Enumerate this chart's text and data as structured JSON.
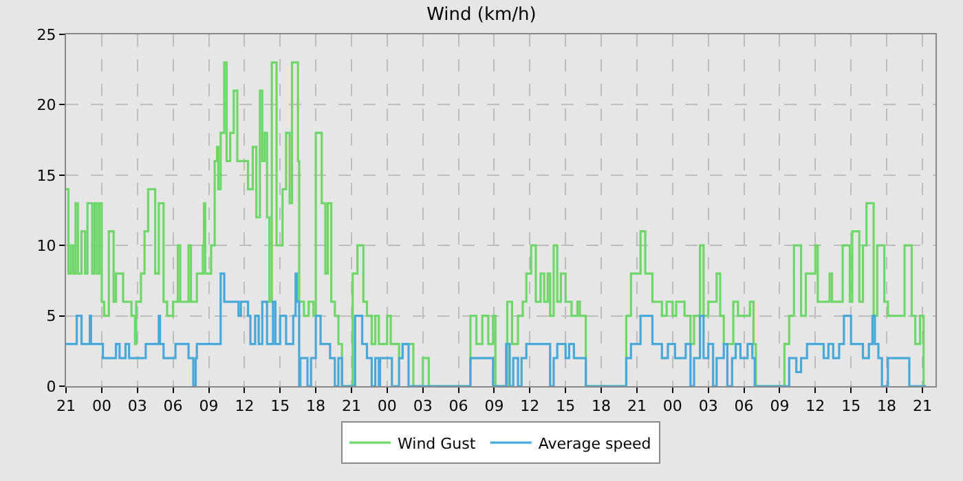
{
  "chart_data": {
    "type": "step",
    "title": "Wind (km/h)",
    "xlim": [
      "--01-01T21:00",
      "--01-04T22:06"
    ],
    "xticks": [
      {
        "value": "--01-01T21:00",
        "label": "21"
      },
      {
        "value": "--01-02T00:00",
        "label": "00"
      },
      {
        "value": "--01-02T03:00",
        "label": "03"
      },
      {
        "value": "--01-02T06:00",
        "label": "06"
      },
      {
        "value": "--01-02T09:00",
        "label": "09"
      },
      {
        "value": "--01-02T12:00",
        "label": "12"
      },
      {
        "value": "--01-02T15:00",
        "label": "15"
      },
      {
        "value": "--01-02T18:00",
        "label": "18"
      },
      {
        "value": "--01-02T21:00",
        "label": "21"
      },
      {
        "value": "--01-03T00:00",
        "label": "00"
      },
      {
        "value": "--01-03T03:00",
        "label": "03"
      },
      {
        "value": "--01-03T06:00",
        "label": "06"
      },
      {
        "value": "--01-03T09:00",
        "label": "09"
      },
      {
        "value": "--01-03T12:00",
        "label": "12"
      },
      {
        "value": "--01-03T15:00",
        "label": "15"
      },
      {
        "value": "--01-03T18:00",
        "label": "18"
      },
      {
        "value": "--01-03T21:00",
        "label": "21"
      },
      {
        "value": "--01-04T00:00",
        "label": "00"
      },
      {
        "value": "--01-04T03:00",
        "label": "03"
      },
      {
        "value": "--01-04T06:00",
        "label": "06"
      },
      {
        "value": "--01-04T09:00",
        "label": "09"
      },
      {
        "value": "--01-04T12:00",
        "label": "12"
      },
      {
        "value": "--01-04T15:00",
        "label": "15"
      },
      {
        "value": "--01-04T18:00",
        "label": "18"
      },
      {
        "value": "--01-04T21:00",
        "label": "21"
      }
    ],
    "ylim": [
      0,
      25
    ],
    "yticks": [
      0,
      5,
      10,
      15,
      20,
      25
    ],
    "grid": true,
    "legend": "bottom",
    "marker": "none",
    "line_style": "solid",
    "series": [
      {
        "name": "Wind Gust",
        "color": "#6fd76a",
        "x": [
          "--01-01T21:00",
          "--01-01T21:12",
          "--01-01T21:24",
          "--01-01T21:36",
          "--01-01T21:48",
          "--01-01T22:00",
          "--01-01T22:18",
          "--01-01T22:36",
          "--01-01T22:48",
          "--01-01T23:12",
          "--01-01T23:24",
          "--01-01T23:36",
          "--01-01T23:48",
          "--01-02T00:00",
          "--01-02T00:12",
          "--01-02T00:36",
          "--01-02T01:00",
          "--01-02T01:12",
          "--01-02T01:48",
          "--01-02T02:30",
          "--01-02T02:48",
          "--01-02T02:54",
          "--01-02T03:18",
          "--01-02T03:36",
          "--01-02T03:54",
          "--01-02T04:30",
          "--01-02T04:48",
          "--01-02T05:12",
          "--01-02T05:30",
          "--01-02T06:00",
          "--01-02T06:24",
          "--01-02T06:36",
          "--01-02T07:18",
          "--01-02T07:30",
          "--01-02T08:00",
          "--01-02T08:30",
          "--01-02T08:36",
          "--01-02T08:42",
          "--01-02T09:12",
          "--01-02T09:30",
          "--01-02T09:42",
          "--01-02T09:48",
          "--01-02T10:00",
          "--01-02T10:18",
          "--01-02T10:30",
          "--01-02T10:48",
          "--01-02T11:06",
          "--01-02T11:24",
          "--01-02T12:18",
          "--01-02T12:42",
          "--01-02T13:00",
          "--01-02T13:18",
          "--01-02T13:30",
          "--01-02T13:42",
          "--01-02T13:54",
          "--01-02T14:06",
          "--01-02T14:18",
          "--01-02T14:42",
          "--01-02T15:12",
          "--01-02T15:30",
          "--01-02T15:48",
          "--01-02T16:00",
          "--01-02T16:30",
          "--01-02T16:36",
          "--01-02T17:00",
          "--01-02T17:24",
          "--01-02T17:48",
          "--01-02T18:00",
          "--01-02T18:30",
          "--01-02T18:48",
          "--01-02T19:00",
          "--01-02T19:18",
          "--01-02T19:36",
          "--01-02T19:54",
          "--01-02T20:12",
          "--01-02T21:06",
          "--01-02T21:30",
          "--01-02T22:00",
          "--01-02T22:18",
          "--01-02T22:42",
          "--01-02T23:00",
          "--01-02T23:18",
          "--01-03T00:00",
          "--01-03T00:18",
          "--01-03T01:00",
          "--01-03T01:18",
          "--01-03T02:12",
          "--01-03T03:00",
          "--01-03T03:30",
          "--01-03T07:00",
          "--01-03T07:30",
          "--01-03T08:00",
          "--01-03T08:30",
          "--01-03T08:54",
          "--01-03T09:06",
          "--01-03T10:06",
          "--01-03T10:30",
          "--01-03T11:00",
          "--01-03T11:24",
          "--01-03T11:42",
          "--01-03T12:06",
          "--01-03T12:30",
          "--01-03T12:54",
          "--01-03T13:12",
          "--01-03T13:30",
          "--01-03T13:42",
          "--01-03T14:00",
          "--01-03T14:18",
          "--01-03T14:36",
          "--01-03T15:00",
          "--01-03T15:30",
          "--01-03T16:00",
          "--01-03T16:12",
          "--01-03T16:42",
          "--01-03T20:06",
          "--01-03T20:30",
          "--01-03T21:18",
          "--01-03T21:42",
          "--01-03T22:18",
          "--01-03T23:06",
          "--01-03T23:30",
          "--01-04T00:00",
          "--01-04T00:18",
          "--01-04T01:00",
          "--01-04T01:30",
          "--01-04T01:48",
          "--01-04T02:18",
          "--01-04T02:36",
          "--01-04T03:00",
          "--01-04T03:42",
          "--01-04T04:00",
          "--01-04T04:18",
          "--01-04T05:06",
          "--01-04T05:30",
          "--01-04T06:30",
          "--01-04T06:48",
          "--01-04T07:00",
          "--01-04T09:24",
          "--01-04T09:48",
          "--01-04T10:12",
          "--01-04T10:48",
          "--01-04T11:12",
          "--01-04T12:00",
          "--01-04T12:12",
          "--01-04T13:12",
          "--01-04T13:24",
          "--01-04T14:18",
          "--01-04T14:54",
          "--01-04T15:06",
          "--01-04T15:42",
          "--01-04T16:00",
          "--01-04T16:18",
          "--01-04T16:54",
          "--01-04T17:12",
          "--01-04T17:48",
          "--01-04T18:06",
          "--01-04T19:30",
          "--01-04T20:06",
          "--01-04T20:24",
          "--01-04T20:48",
          "--01-04T21:06",
          "--01-04T21:18"
        ],
        "values": [
          14,
          8,
          10,
          8,
          13,
          8,
          11,
          8,
          13,
          8,
          13,
          8,
          13,
          6,
          5,
          11,
          6,
          8,
          6,
          5,
          3,
          6,
          8,
          11,
          14,
          8,
          13,
          6,
          5,
          6,
          10,
          6,
          10,
          6,
          8,
          10,
          13,
          8,
          10,
          16,
          17,
          14,
          18,
          23,
          16,
          18,
          21,
          16,
          14,
          17,
          12,
          21,
          16,
          18,
          12,
          6,
          23,
          10,
          14,
          18,
          13,
          23,
          16,
          6,
          5,
          6,
          5,
          18,
          13,
          8,
          13,
          6,
          5,
          3,
          0,
          8,
          10,
          6,
          5,
          3,
          5,
          3,
          5,
          3,
          2,
          3,
          0,
          2,
          0,
          5,
          3,
          5,
          3,
          5,
          0,
          6,
          3,
          5,
          6,
          8,
          10,
          6,
          8,
          6,
          8,
          5,
          10,
          6,
          8,
          6,
          5,
          6,
          5,
          0,
          5,
          8,
          11,
          8,
          6,
          5,
          6,
          5,
          6,
          5,
          3,
          5,
          10,
          5,
          6,
          8,
          5,
          3,
          6,
          5,
          6,
          3,
          0,
          3,
          5,
          10,
          5,
          8,
          10,
          6,
          8,
          6,
          10,
          6,
          11,
          6,
          10,
          13,
          5,
          10,
          6,
          5,
          10,
          5,
          3,
          5,
          0,
          0
        ]
      },
      {
        "name": "Average speed",
        "color": "#4aa8d8",
        "x": [
          "--01-01T21:00",
          "--01-01T21:54",
          "--01-01T22:18",
          "--01-01T23:00",
          "--01-01T23:06",
          "--01-02T00:06",
          "--01-02T01:12",
          "--01-02T01:30",
          "--01-02T02:00",
          "--01-02T02:18",
          "--01-02T03:42",
          "--01-02T04:48",
          "--01-02T04:54",
          "--01-02T05:12",
          "--01-02T06:12",
          "--01-02T07:18",
          "--01-02T07:42",
          "--01-02T07:54",
          "--01-02T08:00",
          "--01-02T10:00",
          "--01-02T10:18",
          "--01-02T11:30",
          "--01-02T11:42",
          "--01-02T12:18",
          "--01-02T12:30",
          "--01-02T12:54",
          "--01-02T13:12",
          "--01-02T13:30",
          "--01-02T13:54",
          "--01-02T14:24",
          "--01-02T14:36",
          "--01-02T15:00",
          "--01-02T15:30",
          "--01-02T16:06",
          "--01-02T16:18",
          "--01-02T16:24",
          "--01-02T16:36",
          "--01-02T16:42",
          "--01-02T17:18",
          "--01-02T17:36",
          "--01-02T18:00",
          "--01-02T18:24",
          "--01-02T19:12",
          "--01-02T19:36",
          "--01-02T19:54",
          "--01-02T20:12",
          "--01-02T21:18",
          "--01-02T21:54",
          "--01-02T22:18",
          "--01-02T22:42",
          "--01-02T23:00",
          "--01-02T23:18",
          "--01-02T23:24",
          "--01-03T00:24",
          "--01-03T01:00",
          "--01-03T01:18",
          "--01-03T01:48",
          "--01-03T07:00",
          "--01-03T08:54",
          "--01-03T10:00",
          "--01-03T10:18",
          "--01-03T10:36",
          "--01-03T11:00",
          "--01-03T11:18",
          "--01-03T11:42",
          "--01-03T13:42",
          "--01-03T14:00",
          "--01-03T14:18",
          "--01-03T15:00",
          "--01-03T15:18",
          "--01-03T15:42",
          "--01-03T16:42",
          "--01-03T20:06",
          "--01-03T20:30",
          "--01-03T21:18",
          "--01-03T22:18",
          "--01-03T23:06",
          "--01-03T23:36",
          "--01-04T00:12",
          "--01-04T01:06",
          "--01-04T01:30",
          "--01-04T01:48",
          "--01-04T02:18",
          "--01-04T02:36",
          "--01-04T03:00",
          "--01-04T03:24",
          "--01-04T03:42",
          "--01-04T04:18",
          "--01-04T04:36",
          "--01-04T05:00",
          "--01-04T05:18",
          "--01-04T05:42",
          "--01-04T06:18",
          "--01-04T06:42",
          "--01-04T06:54",
          "--01-04T09:48",
          "--01-04T10:24",
          "--01-04T10:48",
          "--01-04T11:18",
          "--01-04T12:42",
          "--01-04T13:06",
          "--01-04T13:30",
          "--01-04T14:00",
          "--01-04T14:24",
          "--01-04T15:00",
          "--01-04T16:00",
          "--01-04T16:30",
          "--01-04T16:48",
          "--01-04T17:00",
          "--01-04T17:18",
          "--01-04T17:36",
          "--01-04T18:06",
          "--01-04T19:54",
          "--01-04T21:18"
        ],
        "values": [
          3,
          5,
          3,
          5,
          3,
          2,
          3,
          2,
          3,
          2,
          3,
          5,
          3,
          2,
          3,
          2,
          0,
          2,
          3,
          8,
          6,
          5,
          6,
          5,
          3,
          5,
          3,
          6,
          3,
          6,
          3,
          5,
          3,
          5,
          8,
          6,
          0,
          2,
          0,
          2,
          5,
          3,
          2,
          0,
          2,
          0,
          5,
          3,
          2,
          0,
          2,
          0,
          2,
          0,
          2,
          3,
          0,
          2,
          0,
          3,
          0,
          2,
          0,
          2,
          3,
          0,
          2,
          3,
          2,
          3,
          2,
          0,
          2,
          3,
          5,
          3,
          2,
          3,
          2,
          3,
          0,
          2,
          5,
          2,
          3,
          0,
          2,
          3,
          0,
          2,
          3,
          2,
          3,
          2,
          0,
          2,
          1,
          2,
          3,
          2,
          3,
          2,
          3,
          5,
          3,
          2,
          3,
          5,
          3,
          2,
          0,
          2,
          0,
          0
        ]
      }
    ]
  }
}
